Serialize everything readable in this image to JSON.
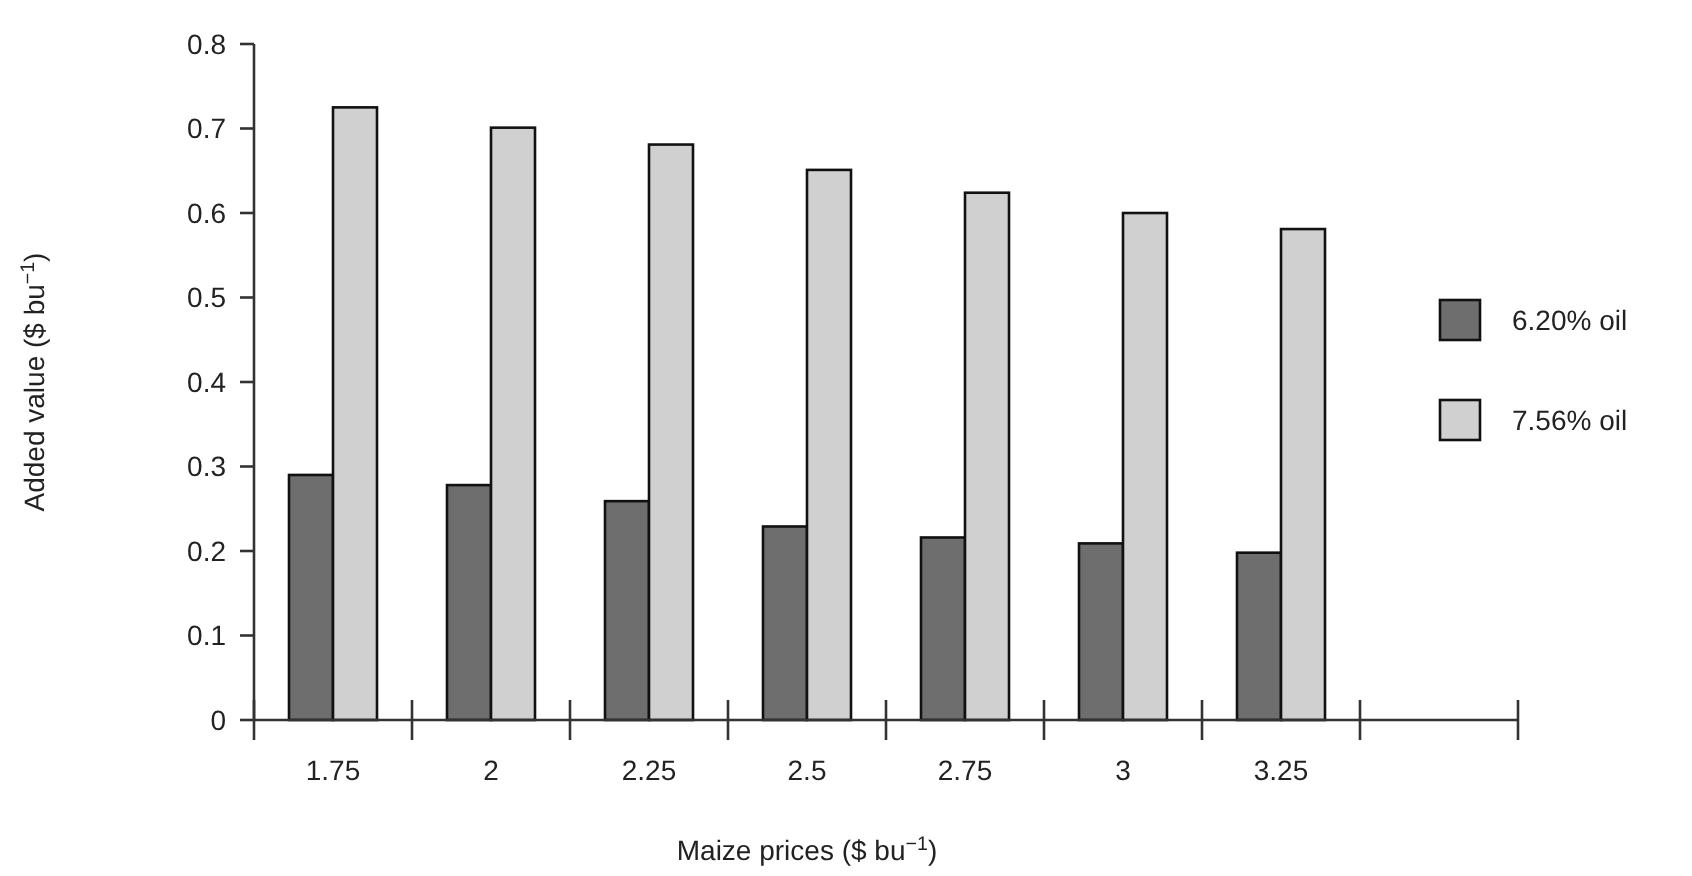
{
  "chart_data": {
    "type": "bar",
    "xlabel": "Maize prices ($ bu$^{−1}$)",
    "ylabel": "Added value ($ bu$^{−1}$)",
    "categories": [
      "1.75",
      "2",
      "2.25",
      "2.5",
      "2.75",
      "3",
      "3.25",
      null
    ],
    "series": [
      {
        "name": "6.20% oil",
        "color": "#6e6e6e",
        "values": [
          0.29,
          0.278,
          0.259,
          0.229,
          0.216,
          0.209,
          0.198,
          null
        ]
      },
      {
        "name": "7.56% oil",
        "color": "#d0d0d0",
        "values": [
          0.725,
          0.701,
          0.681,
          0.651,
          0.624,
          0.6,
          0.581,
          null
        ]
      }
    ],
    "ylim": [
      0,
      0.8
    ],
    "yticks": [
      0,
      0.1,
      0.2,
      0.3,
      0.4,
      0.5,
      0.6,
      0.7,
      0.8
    ],
    "legend": "right",
    "grid": false
  }
}
